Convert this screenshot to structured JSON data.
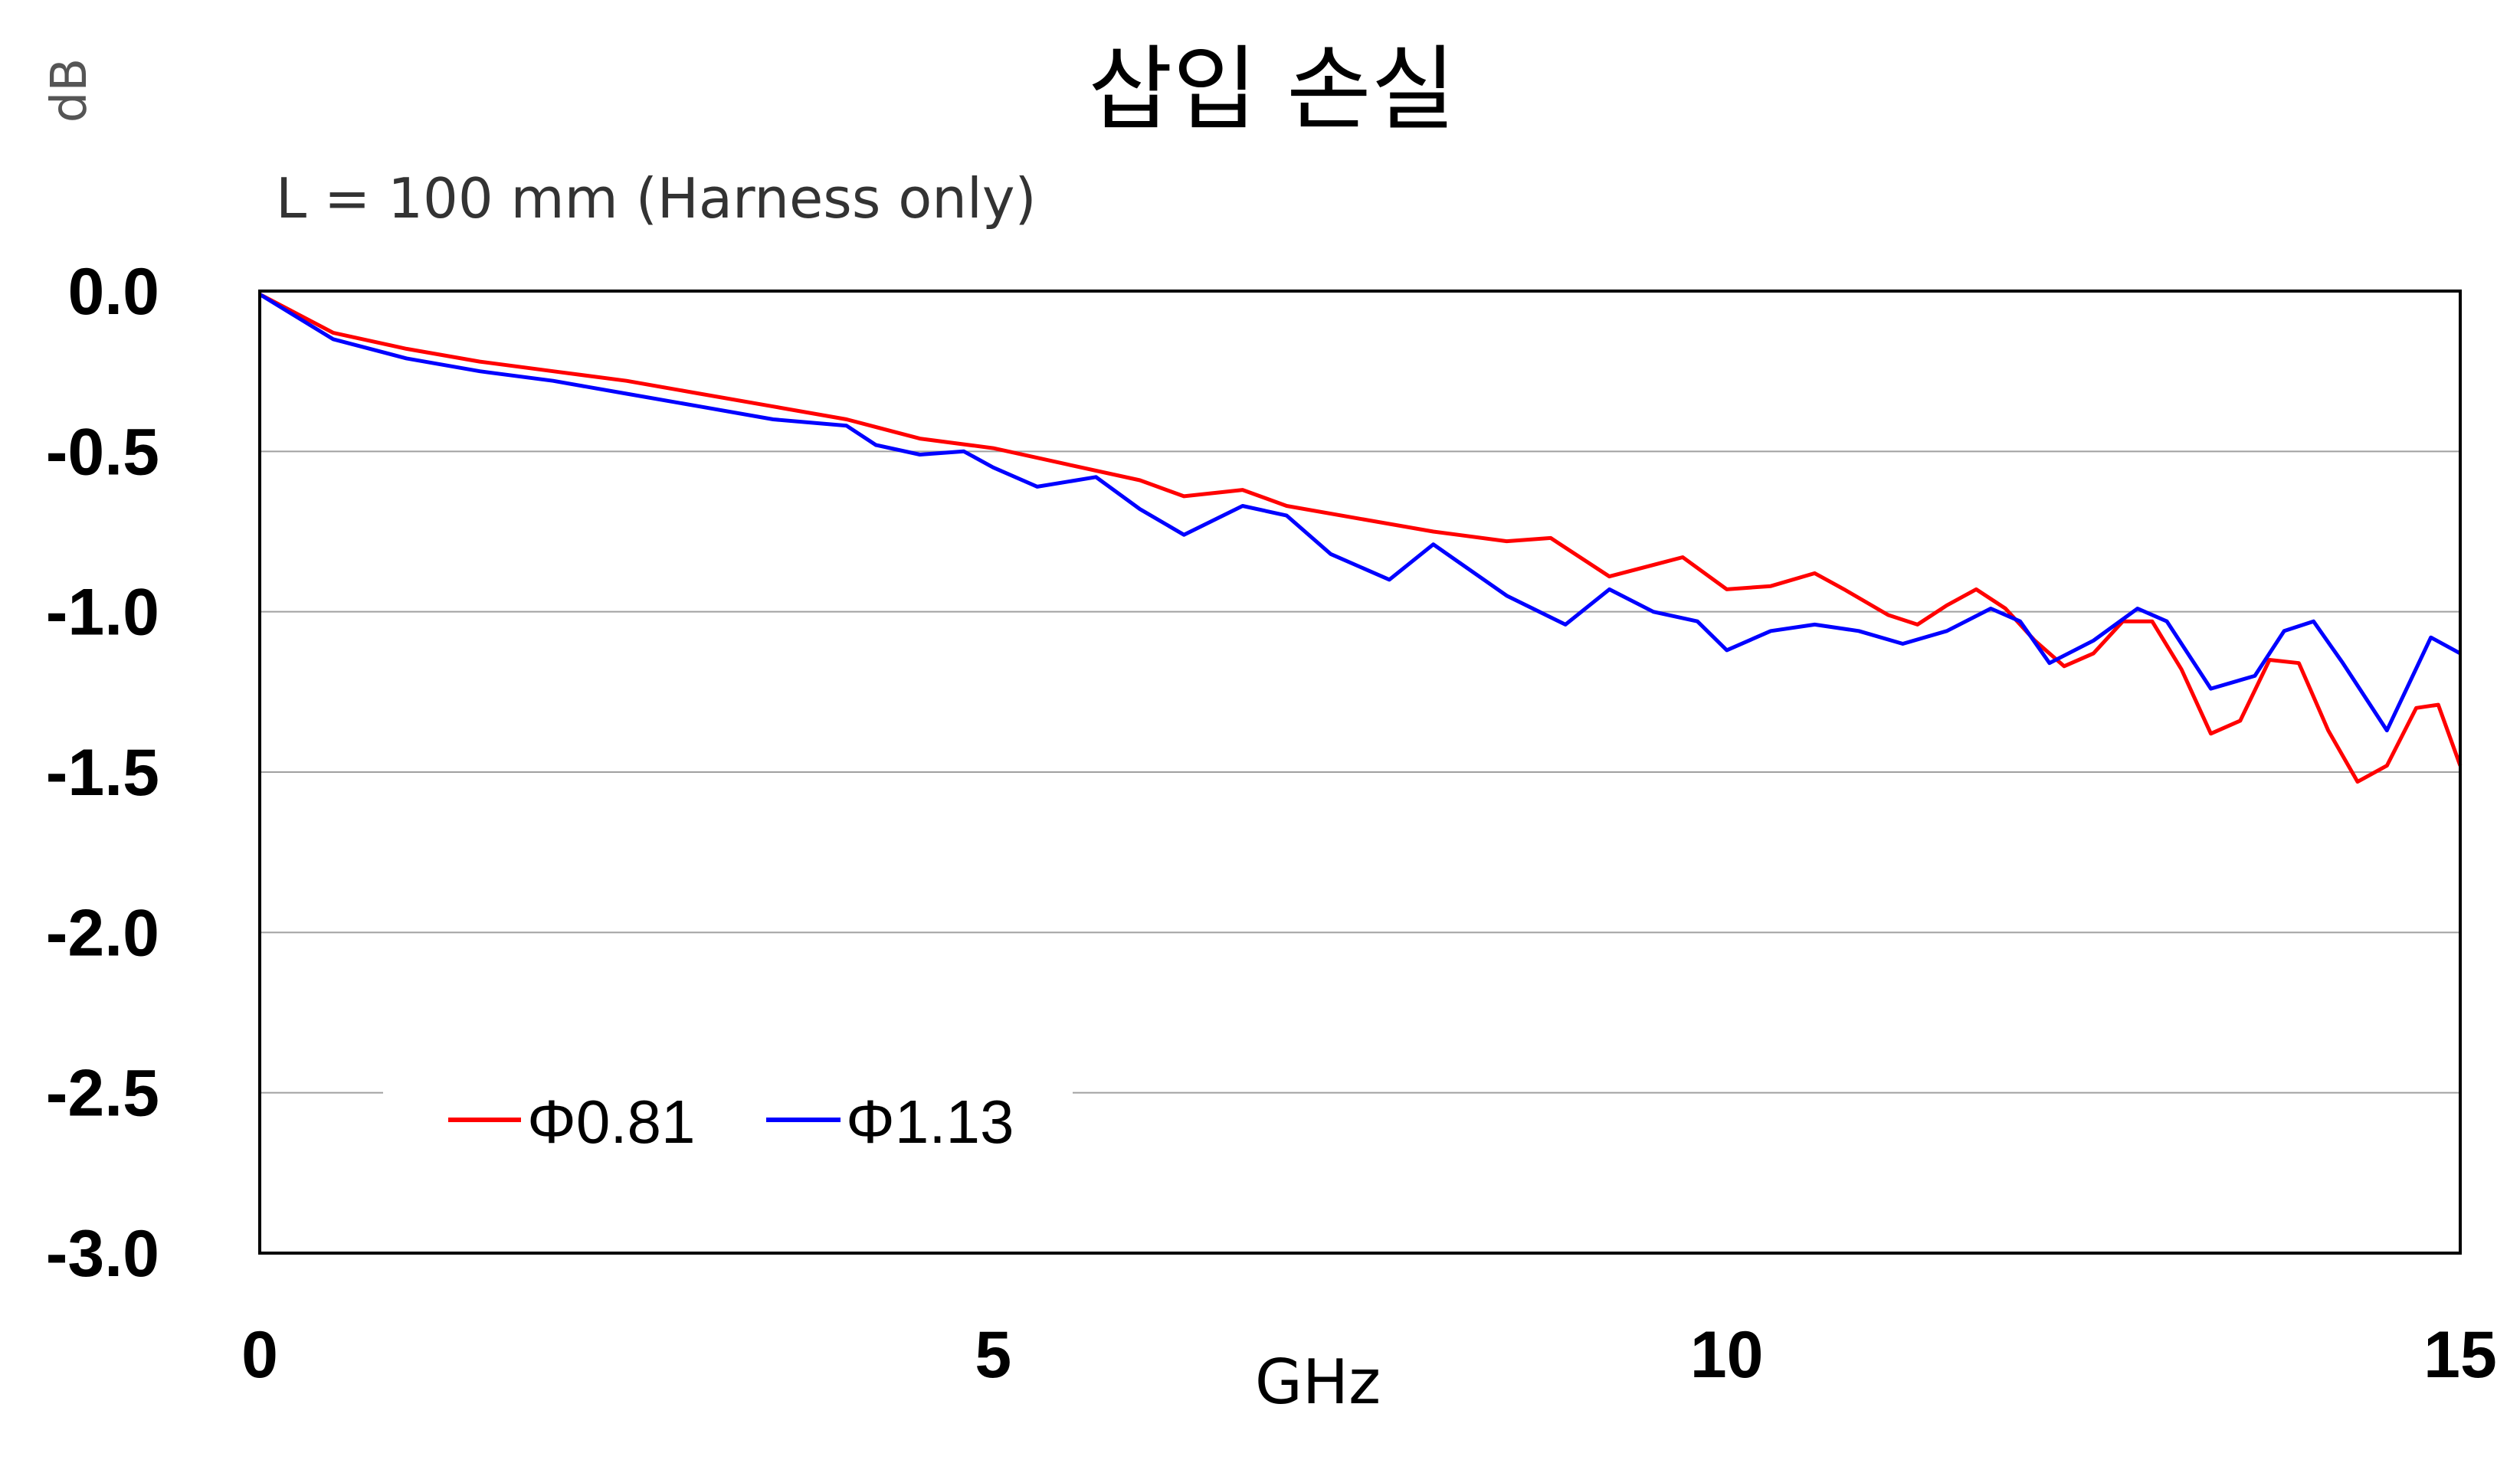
{
  "chart_data": {
    "type": "line",
    "title": "삽입 손실",
    "subtitle": "L = 100 mm (Harness only)",
    "xlabel": "GHz",
    "ylabel": "dB",
    "xlim": [
      0,
      15
    ],
    "ylim": [
      -3.0,
      0.0
    ],
    "x_ticks": [
      0,
      5,
      10,
      15
    ],
    "x_tick_labels": [
      "0",
      "5",
      "10",
      "15"
    ],
    "y_ticks": [
      0.0,
      -0.5,
      -1.0,
      -1.5,
      -2.0,
      -2.5,
      -3.0
    ],
    "y_tick_labels": [
      "0.0",
      "-0.5",
      "-1.0",
      "-1.5",
      "-2.0",
      "-2.5",
      "-3.0"
    ],
    "grid": "horizontal",
    "legend_position": "lower-left",
    "series": [
      {
        "name": "Φ0.81",
        "color": "#ff0000",
        "x": [
          0,
          0.5,
          1,
          1.5,
          2,
          2.5,
          3,
          3.5,
          4,
          4.5,
          5,
          5.5,
          6,
          6.3,
          6.7,
          7,
          7.5,
          8,
          8.5,
          8.8,
          9.2,
          9.7,
          10,
          10.3,
          10.6,
          10.8,
          11.1,
          11.3,
          11.5,
          11.7,
          11.9,
          12.1,
          12.3,
          12.5,
          12.7,
          12.9,
          13.1,
          13.3,
          13.5,
          13.7,
          13.9,
          14.1,
          14.3,
          14.5,
          14.7,
          14.85,
          15
        ],
        "values": [
          -0.01,
          -0.13,
          -0.18,
          -0.22,
          -0.25,
          -0.28,
          -0.32,
          -0.36,
          -0.4,
          -0.46,
          -0.49,
          -0.54,
          -0.59,
          -0.64,
          -0.62,
          -0.67,
          -0.71,
          -0.75,
          -0.78,
          -0.77,
          -0.89,
          -0.83,
          -0.93,
          -0.92,
          -0.88,
          -0.93,
          -1.01,
          -1.04,
          -0.98,
          -0.93,
          -0.99,
          -1.09,
          -1.17,
          -1.13,
          -1.03,
          -1.03,
          -1.18,
          -1.38,
          -1.34,
          -1.15,
          -1.16,
          -1.37,
          -1.53,
          -1.48,
          -1.3,
          -1.29,
          -1.48
        ]
      },
      {
        "name": "Φ1.13",
        "color": "#0000ff",
        "x": [
          0,
          0.5,
          1,
          1.5,
          2,
          2.5,
          3,
          3.5,
          4,
          4.2,
          4.5,
          4.8,
          5,
          5.3,
          5.7,
          6,
          6.3,
          6.7,
          7,
          7.3,
          7.7,
          8,
          8.5,
          8.9,
          9.2,
          9.5,
          9.8,
          10,
          10.3,
          10.6,
          10.9,
          11.2,
          11.5,
          11.8,
          12,
          12.2,
          12.5,
          12.8,
          13,
          13.3,
          13.6,
          13.8,
          14,
          14.2,
          14.5,
          14.8,
          15
        ],
        "values": [
          -0.01,
          -0.15,
          -0.21,
          -0.25,
          -0.28,
          -0.32,
          -0.36,
          -0.4,
          -0.42,
          -0.48,
          -0.51,
          -0.5,
          -0.55,
          -0.61,
          -0.58,
          -0.68,
          -0.76,
          -0.67,
          -0.7,
          -0.82,
          -0.9,
          -0.79,
          -0.95,
          -1.04,
          -0.93,
          -1.0,
          -1.03,
          -1.12,
          -1.06,
          -1.04,
          -1.06,
          -1.1,
          -1.06,
          -0.99,
          -1.03,
          -1.16,
          -1.09,
          -0.99,
          -1.03,
          -1.24,
          -1.2,
          -1.06,
          -1.03,
          -1.16,
          -1.37,
          -1.08,
          -1.13
        ]
      }
    ]
  }
}
